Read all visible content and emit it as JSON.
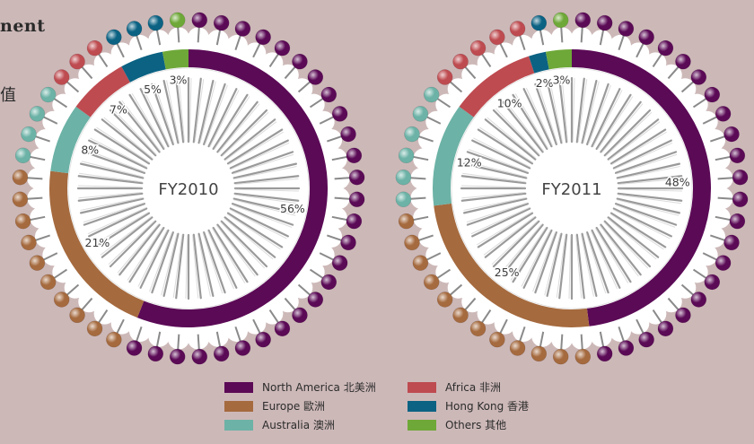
{
  "page": {
    "title_fragment": "nent",
    "title_fragment_cn": "值"
  },
  "colors": {
    "North America": "#5b0a56",
    "Europe": "#a56a3e",
    "Australia": "#6cb2a6",
    "Africa": "#be4b50",
    "Hong Kong": "#0b6283",
    "Others": "#6ea838"
  },
  "chart_data": [
    {
      "type": "pie",
      "center_label": "FY2010",
      "categories": [
        "North America 北美洲",
        "Europe 歐洲",
        "Australia 澳洲",
        "Africa 非洲",
        "Hong Kong 香港",
        "Others 其他"
      ],
      "values": [
        56,
        21,
        8,
        7,
        5,
        3
      ],
      "labels": [
        "56%",
        "21%",
        "8%",
        "7%",
        "5%",
        "3%"
      ],
      "legend_position": "bottom"
    },
    {
      "type": "pie",
      "center_label": "FY2011",
      "categories": [
        "North America 北美洲",
        "Europe 歐洲",
        "Australia 澳洲",
        "Africa 非洲",
        "Hong Kong 香港",
        "Others 其他"
      ],
      "values": [
        48,
        25,
        12,
        10,
        2,
        3
      ],
      "labels": [
        "48%",
        "25%",
        "12%",
        "10%",
        "2%",
        "3%"
      ],
      "legend_position": "bottom"
    }
  ],
  "legend": {
    "items": [
      {
        "label": "North America 北美洲",
        "color": "#5b0a56"
      },
      {
        "label": "Africa 非洲",
        "color": "#be4b50"
      },
      {
        "label": "Europe 歐洲",
        "color": "#a56a3e"
      },
      {
        "label": "Hong Kong 香港",
        "color": "#0b6283"
      },
      {
        "label": "Australia 澳洲",
        "color": "#6cb2a6"
      },
      {
        "label": "Others 其他",
        "color": "#6ea838"
      }
    ]
  }
}
